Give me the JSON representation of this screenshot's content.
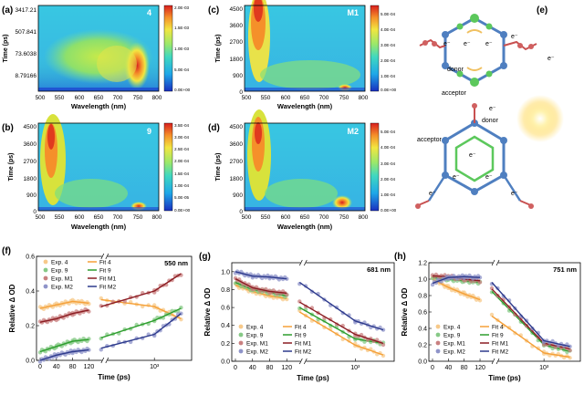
{
  "figure": {
    "panels": {
      "a": {
        "letter": "(a)",
        "tag": "4",
        "cbar": [
          "2.0E-03",
          "1.5E-03",
          "1.0E-03",
          "5.0E-04",
          "0.0E+00"
        ],
        "yticks": [
          "3417.21",
          "507.841",
          "73.6038",
          "8.79166"
        ],
        "ylabel": "Time (ps)",
        "xlabel": "Wavelength (nm)",
        "xticks": [
          "500",
          "550",
          "600",
          "650",
          "700",
          "750",
          "800"
        ]
      },
      "b": {
        "letter": "(b)",
        "tag": "9",
        "cbar": [
          "3.5E-04",
          "3.0E-04",
          "2.5E-04",
          "2.0E-04",
          "1.5E-04",
          "1.0E-04",
          "5.0E-05",
          "0.0E+00"
        ],
        "yticks": [
          "4500",
          "3600",
          "2700",
          "1800",
          "900",
          "0"
        ],
        "ylabel": "Time (ps)",
        "xlabel": "Wavelength (nm)",
        "xticks": [
          "500",
          "550",
          "600",
          "650",
          "700",
          "750",
          "800"
        ]
      },
      "c": {
        "letter": "(c)",
        "tag": "M1",
        "cbar": [
          "5.0E-04",
          "4.0E-04",
          "3.0E-04",
          "2.0E-04",
          "1.0E-04",
          "0.0E+00"
        ],
        "yticks": [
          "4500",
          "3600",
          "2700",
          "1800",
          "900",
          "0"
        ],
        "ylabel": "Time (ps)",
        "xlabel": "Wavelength (nm)",
        "xticks": [
          "500",
          "550",
          "600",
          "650",
          "700",
          "750",
          "800"
        ]
      },
      "d": {
        "letter": "(d)",
        "tag": "M2",
        "cbar": [
          "5.0E-04",
          "4.0E-04",
          "3.0E-04",
          "2.0E-04",
          "1.0E-04",
          "0.0E+00"
        ],
        "yticks": [
          "4500",
          "3600",
          "2700",
          "1800",
          "900",
          "0"
        ],
        "ylabel": "Time (ps)",
        "xlabel": "Wavelength (nm)",
        "xticks": [
          "500",
          "550",
          "600",
          "650",
          "700",
          "750",
          "800"
        ]
      },
      "e": {
        "letter": "(e)",
        "labels": {
          "donor": "donor",
          "acceptor": "acceptor",
          "electron": "e⁻"
        }
      },
      "f": {
        "letter": "(f)",
        "wavelength": "550 nm"
      },
      "g": {
        "letter": "(g)",
        "wavelength": "681 nm"
      },
      "h": {
        "letter": "(h)",
        "wavelength": "751 nm"
      }
    },
    "kinetics_axes": {
      "ylabel": "Relative Δ OD",
      "xlabel": "Time (ps)",
      "yticks": [
        "0.0",
        "0.2",
        "0.4",
        "0.6",
        "0.8",
        "1.0",
        "1.2"
      ],
      "xticks_linear": [
        "0",
        "40",
        "80",
        "120"
      ],
      "xtick_log": "10³"
    },
    "legend": {
      "exp": [
        "Exp. 4",
        "Exp. 9",
        "Exp. M1",
        "Exp. M2"
      ],
      "fit": [
        "Fit 4",
        "Fit 9",
        "Fit M1",
        "Fit M2"
      ]
    },
    "colors": {
      "s4": "#f5a038",
      "s9": "#2e9e2e",
      "sM1": "#8b1c22",
      "sM2": "#2d3a8c",
      "e4": "#f7c98a",
      "e9": "#86c986",
      "eM1": "#c98080",
      "eM2": "#8f94c9"
    }
  },
  "chart_data": [
    {
      "type": "line",
      "panel": "f",
      "title": "550 nm",
      "ylabel": "Relative Δ OD",
      "xlabel": "Time (ps)",
      "ylim": [
        0,
        0.6
      ],
      "x": [
        0,
        40,
        80,
        120,
        150,
        1000,
        3000
      ],
      "series": [
        {
          "name": "4",
          "values": [
            0.3,
            0.32,
            0.34,
            0.33,
            0.35,
            0.31,
            0.24
          ]
        },
        {
          "name": "9",
          "values": [
            0.05,
            0.08,
            0.11,
            0.12,
            0.13,
            0.23,
            0.3
          ]
        },
        {
          "name": "M1",
          "values": [
            0.22,
            0.24,
            0.27,
            0.29,
            0.31,
            0.4,
            0.5
          ]
        },
        {
          "name": "M2",
          "values": [
            0.0,
            0.03,
            0.05,
            0.06,
            0.07,
            0.15,
            0.27
          ]
        }
      ]
    },
    {
      "type": "line",
      "panel": "g",
      "title": "681 nm",
      "ylabel": "Relative Δ OD",
      "xlabel": "Time (ps)",
      "ylim": [
        0,
        1.1
      ],
      "x": [
        0,
        40,
        80,
        120,
        150,
        1000,
        3000
      ],
      "series": [
        {
          "name": "4",
          "values": [
            0.85,
            0.78,
            0.73,
            0.7,
            0.55,
            0.18,
            0.07
          ]
        },
        {
          "name": "9",
          "values": [
            0.88,
            0.8,
            0.77,
            0.73,
            0.6,
            0.25,
            0.2
          ]
        },
        {
          "name": "M1",
          "values": [
            0.92,
            0.82,
            0.78,
            0.76,
            0.66,
            0.3,
            0.2
          ]
        },
        {
          "name": "M2",
          "values": [
            1.0,
            0.95,
            0.94,
            0.92,
            0.88,
            0.45,
            0.35
          ]
        }
      ]
    },
    {
      "type": "line",
      "panel": "h",
      "title": "751 nm",
      "ylabel": "Relative Δ OD",
      "xlabel": "Time (ps)",
      "ylim": [
        0,
        1.2
      ],
      "x": [
        0,
        40,
        80,
        120,
        150,
        1000,
        3000
      ],
      "series": [
        {
          "name": "4",
          "values": [
            1.0,
            0.9,
            0.82,
            0.75,
            0.55,
            0.1,
            0.05
          ]
        },
        {
          "name": "9",
          "values": [
            1.02,
            1.0,
            0.98,
            0.96,
            0.85,
            0.2,
            0.12
          ]
        },
        {
          "name": "M1",
          "values": [
            1.04,
            1.03,
            1.0,
            0.98,
            0.88,
            0.22,
            0.15
          ]
        },
        {
          "name": "M2",
          "values": [
            0.95,
            1.02,
            1.03,
            1.02,
            0.96,
            0.25,
            0.18
          ]
        }
      ]
    }
  ]
}
